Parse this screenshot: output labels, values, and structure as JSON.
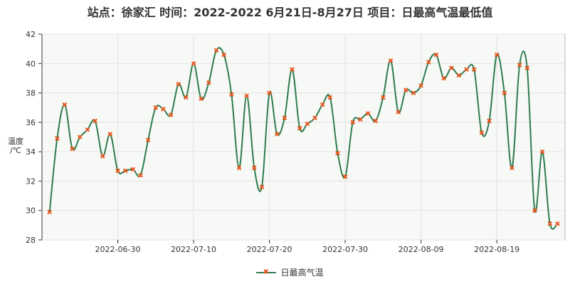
{
  "chart_data": {
    "type": "line",
    "title": "站点：徐家汇 时间：2022-2022  6月21日-8月27日 项目：日最高气温最低值",
    "ylabel": "温度 /℃",
    "xlabel": "",
    "ylim": [
      28,
      42
    ],
    "yticks": [
      "28",
      "30",
      "32",
      "34",
      "36",
      "38",
      "40",
      "42"
    ],
    "xlim": [
      "2022-06-20",
      "2022-08-28"
    ],
    "xticks": [
      "2022-06-30",
      "2022-07-10",
      "2022-07-20",
      "2022-07-30",
      "2022-08-09",
      "2022-08-19"
    ],
    "grid": true,
    "legend_position": "bottom",
    "series": [
      {
        "name": "日最高气温",
        "color": "#2e7d4f",
        "marker_color": "#e8541c",
        "x": [
          "2022-06-21",
          "2022-06-22",
          "2022-06-23",
          "2022-06-24",
          "2022-06-25",
          "2022-06-26",
          "2022-06-27",
          "2022-06-28",
          "2022-06-29",
          "2022-06-30",
          "2022-07-01",
          "2022-07-02",
          "2022-07-03",
          "2022-07-04",
          "2022-07-05",
          "2022-07-06",
          "2022-07-07",
          "2022-07-08",
          "2022-07-09",
          "2022-07-10",
          "2022-07-11",
          "2022-07-12",
          "2022-07-13",
          "2022-07-14",
          "2022-07-15",
          "2022-07-16",
          "2022-07-17",
          "2022-07-18",
          "2022-07-19",
          "2022-07-20",
          "2022-07-21",
          "2022-07-22",
          "2022-07-23",
          "2022-07-24",
          "2022-07-25",
          "2022-07-26",
          "2022-07-27",
          "2022-07-28",
          "2022-07-29",
          "2022-07-30",
          "2022-07-31",
          "2022-08-01",
          "2022-08-02",
          "2022-08-03",
          "2022-08-04",
          "2022-08-05",
          "2022-08-06",
          "2022-08-07",
          "2022-08-08",
          "2022-08-09",
          "2022-08-10",
          "2022-08-11",
          "2022-08-12",
          "2022-08-13",
          "2022-08-14",
          "2022-08-15",
          "2022-08-16",
          "2022-08-17",
          "2022-08-18",
          "2022-08-19",
          "2022-08-20",
          "2022-08-21",
          "2022-08-22",
          "2022-08-23",
          "2022-08-24",
          "2022-08-25",
          "2022-08-26",
          "2022-08-27"
        ],
        "values": [
          29.9,
          34.9,
          37.2,
          34.2,
          35.0,
          35.5,
          36.1,
          33.7,
          35.2,
          32.7,
          32.7,
          32.8,
          32.4,
          34.8,
          37.0,
          36.9,
          36.5,
          38.6,
          37.7,
          40.0,
          37.6,
          38.7,
          40.9,
          40.6,
          37.9,
          32.9,
          37.8,
          32.9,
          31.6,
          38.0,
          35.2,
          36.3,
          39.6,
          35.6,
          35.9,
          36.3,
          37.2,
          37.7,
          33.9,
          32.3,
          36.0,
          36.2,
          36.6,
          36.1,
          37.7,
          40.2,
          36.7,
          38.2,
          38.0,
          38.5,
          40.1,
          40.6,
          39.0,
          39.7,
          39.2,
          39.6,
          39.6,
          35.3,
          36.1,
          40.6,
          38.0,
          32.9,
          39.9,
          39.7,
          30.0,
          34.0,
          29.1,
          29.1
        ]
      }
    ]
  }
}
